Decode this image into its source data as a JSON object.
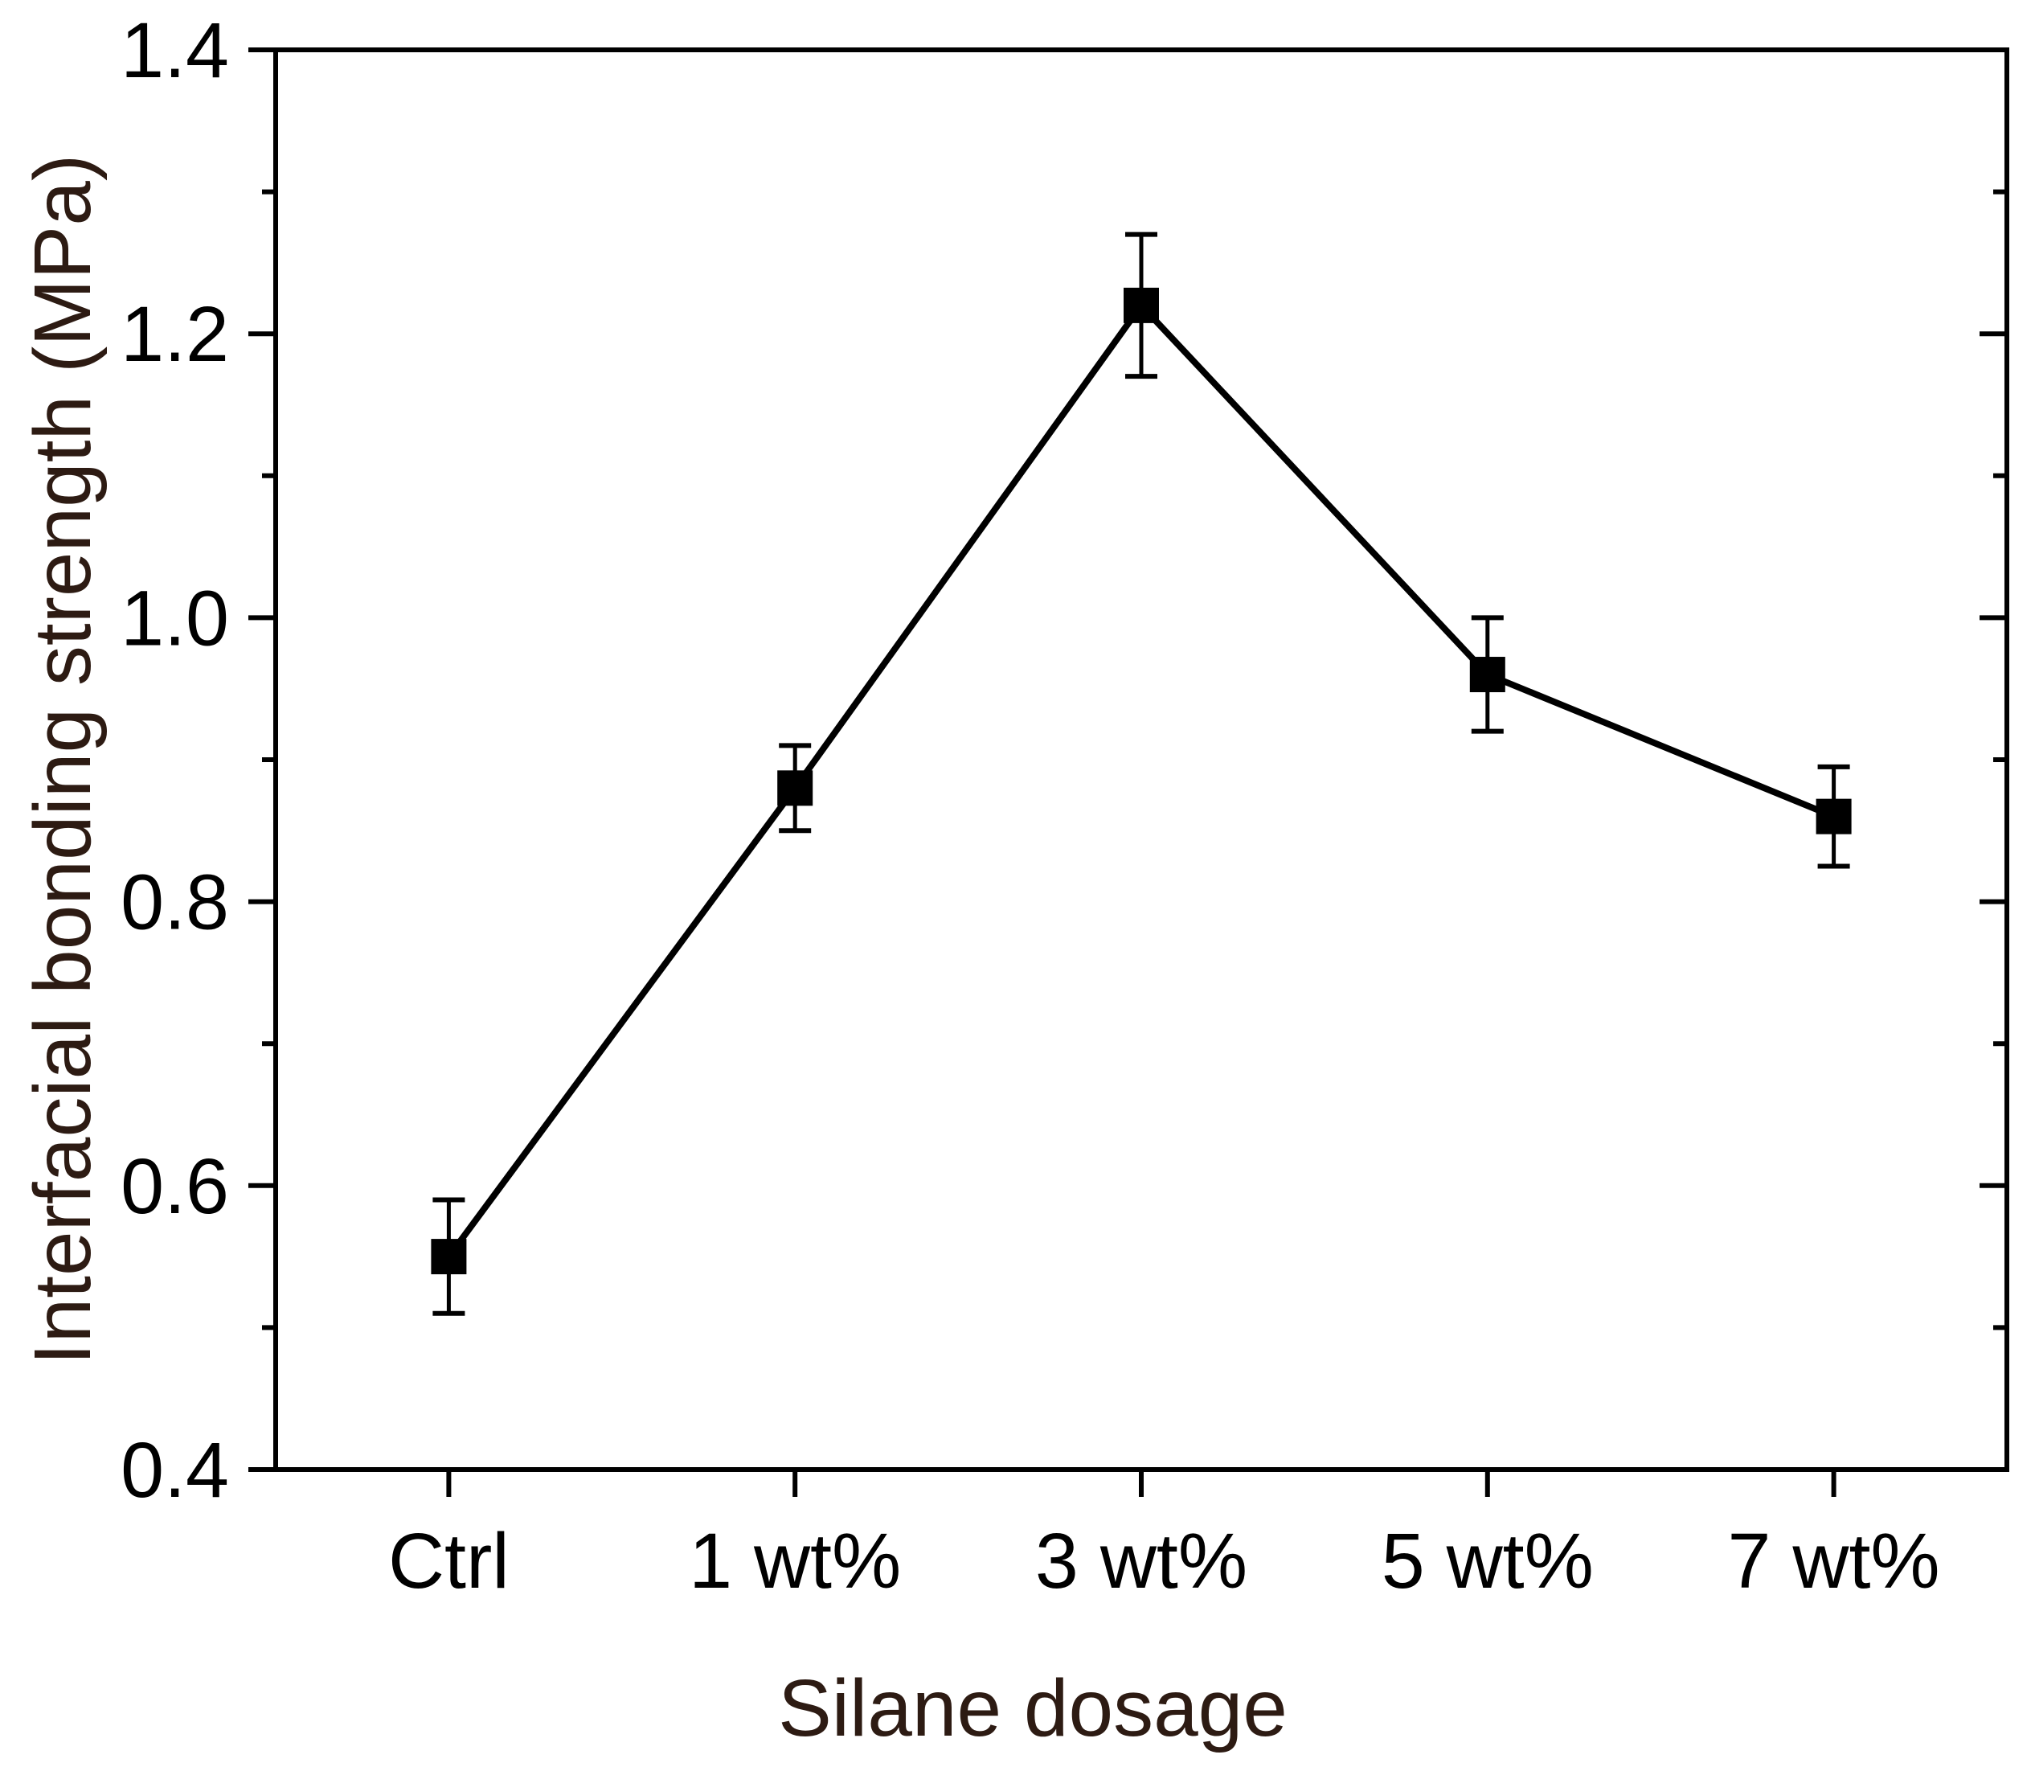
{
  "chart_data": {
    "type": "line",
    "title": "",
    "xlabel": "Silane dosage",
    "ylabel": "Interfacial bonding strength (MPa)",
    "categories": [
      "Ctrl",
      "1 wt%",
      "3 wt%",
      "5 wt%",
      "7 wt%"
    ],
    "series": [
      {
        "name": "Interfacial bonding strength",
        "values": [
          0.55,
          0.88,
          1.22,
          0.96,
          0.86
        ],
        "errors": [
          0.04,
          0.03,
          0.05,
          0.04,
          0.035
        ],
        "marker": "filled-square",
        "color": "#000000"
      }
    ],
    "ylim": [
      0.4,
      1.4
    ],
    "y_tick_labels": [
      "0.4",
      "0.6",
      "0.8",
      "1.0",
      "1.2",
      "1.4"
    ],
    "y_major_step": 0.2,
    "y_minor_step": 0.1,
    "grid": false,
    "legend": "none",
    "colors": {
      "axis_title": "#2d1b13",
      "tick_label": "#000000",
      "line": "#000000",
      "background": "#ffffff"
    }
  }
}
